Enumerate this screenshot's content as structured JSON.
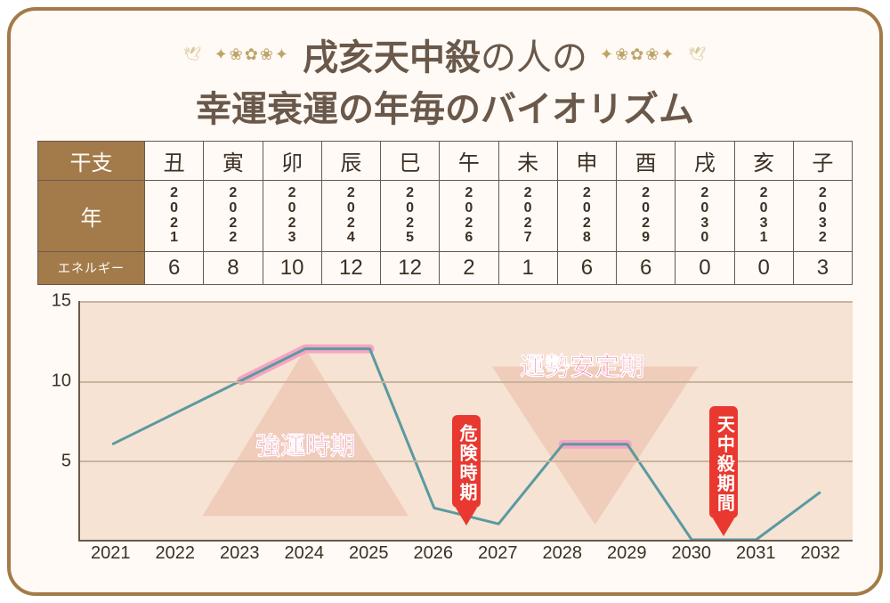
{
  "title": {
    "line1_underlined": "戌亥天中殺",
    "line1_rest": "の人の",
    "line2": "幸運衰運の年毎のバイオリズム",
    "fontsize": 40,
    "color": "#6a584a",
    "underline_color": "#f7a9c4"
  },
  "decor": {
    "flourish_left": "✦❀✿❀✦",
    "flourish_right": "✦❀✿❀✦",
    "bird_glyph": "🕊",
    "flourish_color": "#bfa46a"
  },
  "card": {
    "border_color": "#a27b48",
    "border_radius": 32,
    "background": "#fffaf5"
  },
  "table": {
    "header_bg": "#a37b4b",
    "header_fg": "#fffcf7",
    "cell_text_color": "#3d2f24",
    "border_color": "#6a584a",
    "row_labels": {
      "eto": "干支",
      "year": "年",
      "energy": "エネルギー"
    },
    "columns": [
      {
        "eto": "丑",
        "year": "2021",
        "energy": 6
      },
      {
        "eto": "寅",
        "year": "2022",
        "energy": 8
      },
      {
        "eto": "卯",
        "year": "2023",
        "energy": 10
      },
      {
        "eto": "辰",
        "year": "2024",
        "energy": 12
      },
      {
        "eto": "巳",
        "year": "2025",
        "energy": 12
      },
      {
        "eto": "午",
        "year": "2026",
        "energy": 2
      },
      {
        "eto": "未",
        "year": "2027",
        "energy": 1
      },
      {
        "eto": "申",
        "year": "2028",
        "energy": 6
      },
      {
        "eto": "酉",
        "year": "2029",
        "energy": 6
      },
      {
        "eto": "戌",
        "year": "2030",
        "energy": 0
      },
      {
        "eto": "亥",
        "year": "2031",
        "energy": 0
      },
      {
        "eto": "子",
        "year": "2032",
        "energy": 3
      }
    ],
    "font_sizes": {
      "header": 24,
      "energy_small": 14,
      "year_digits": 16,
      "cell": 24
    }
  },
  "chart": {
    "type": "line",
    "ylim": [
      0,
      15
    ],
    "yticks": [
      5,
      10,
      15
    ],
    "x_categories": [
      "2021",
      "2022",
      "2023",
      "2024",
      "2025",
      "2026",
      "2027",
      "2028",
      "2029",
      "2030",
      "2031",
      "2032"
    ],
    "values": [
      6,
      8,
      10,
      12,
      12,
      2,
      1,
      6,
      6,
      0,
      0,
      3
    ],
    "line_color": "#5a9aa0",
    "line_width": 3,
    "plot_background": "#f6e3d4",
    "grid_color": "#c9b49d",
    "axis_color": "#6a584a",
    "label_fontsize": 20,
    "highlight_segments": [
      {
        "from": 2,
        "to": 4,
        "color": "#f5a5c3",
        "width": 10
      },
      {
        "from": 7,
        "to": 8,
        "color": "#f5a5c3",
        "width": 10
      }
    ],
    "background_triangles": [
      {
        "center_x_index": 3,
        "direction": "up",
        "color": "#efc9b7"
      },
      {
        "center_x_index": 7.5,
        "direction": "down",
        "color": "#efc9b7"
      }
    ],
    "text_annotations": [
      {
        "text": "強運時期",
        "x_index_center": 3,
        "y_value": 6,
        "color": "#e868a0",
        "fontsize": 28
      },
      {
        "text": "運勢安定期",
        "x_index_center": 7.3,
        "y_value": 11,
        "color": "#e868a0",
        "fontsize": 28
      }
    ],
    "pointer_tags": [
      {
        "text": "危険時期",
        "x_index": 5.5,
        "pointer_y_value": 1,
        "bg": "#e8382f",
        "fg": "#ffffff"
      },
      {
        "text": "天中殺期間",
        "x_index": 9.5,
        "pointer_y_value": 0.3,
        "bg": "#e8382f",
        "fg": "#ffffff"
      }
    ]
  }
}
